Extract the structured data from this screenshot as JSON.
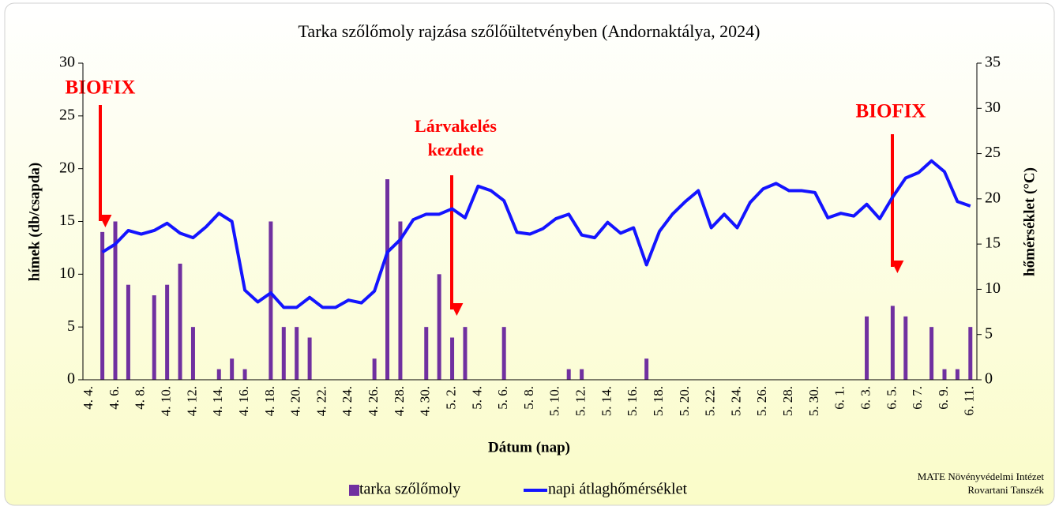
{
  "chart_data": {
    "type": "bar_line",
    "title": "Tarka szőlőmoly rajzása szőlőültetvényben (Andornaktálya, 2024)",
    "x_label": "Dátum (nap)",
    "y_label": "hímek (db/csapda)",
    "y2_label": "hőmérséklet (°C)",
    "categories": [
      "4. 4.",
      null,
      "4. 6.",
      null,
      "4. 8.",
      null,
      "4. 10.",
      null,
      "4. 12.",
      null,
      "4. 14.",
      null,
      "4. 16.",
      null,
      "4. 18.",
      null,
      "4. 20.",
      null,
      "4. 22.",
      null,
      "4. 24.",
      null,
      "4. 26.",
      null,
      "4. 28.",
      null,
      "4. 30.",
      null,
      "5. 2.",
      null,
      "5. 4.",
      null,
      "5. 6.",
      null,
      "5. 8.",
      null,
      "5. 10.",
      null,
      "5. 12.",
      null,
      "5. 14.",
      null,
      "5. 16.",
      null,
      "5. 18.",
      null,
      "5. 20.",
      null,
      "5. 22.",
      null,
      "5. 24.",
      null,
      "5. 26.",
      null,
      "5. 28.",
      null,
      "5. 30.",
      null,
      "6. 1.",
      null,
      "6. 3.",
      null,
      "6. 5.",
      null,
      "6. 7.",
      null,
      "6. 9.",
      null,
      "6. 11."
    ],
    "series": [
      {
        "name": "tarka szőlőmoly",
        "type": "bar",
        "color": "#7030a0",
        "values": [
          0,
          14,
          15,
          9,
          0,
          8,
          9,
          11,
          5,
          0,
          1,
          2,
          1,
          0,
          15,
          5,
          5,
          4,
          0,
          0,
          0,
          0,
          2,
          19,
          15,
          0,
          5,
          10,
          4,
          5,
          0,
          0,
          5,
          0,
          0,
          0,
          0,
          1,
          1,
          0,
          0,
          0,
          0,
          2,
          0,
          0,
          0,
          0,
          0,
          0,
          0,
          0,
          0,
          0,
          0,
          0,
          0,
          0,
          0,
          0,
          6,
          0,
          7,
          6,
          0,
          5,
          1,
          1,
          5
        ]
      },
      {
        "name": "napi átlaghőmérséklet",
        "type": "line",
        "axis": "y2",
        "color": "#1414ff",
        "values": [
          null,
          14.1,
          15,
          16.5,
          16.1,
          16.5,
          17.3,
          16.2,
          15.7,
          16.9,
          18.4,
          17.5,
          9.9,
          8.6,
          9.6,
          8,
          8,
          9.1,
          8,
          8,
          8.8,
          8.5,
          9.8,
          14.1,
          15.5,
          17.7,
          18.3,
          18.3,
          18.9,
          17.9,
          21.4,
          20.9,
          19.8,
          16.3,
          16.1,
          16.7,
          17.8,
          18.3,
          16,
          15.7,
          17.4,
          16.2,
          16.8,
          12.7,
          16.4,
          18.3,
          19.7,
          20.9,
          16.8,
          18.3,
          16.8,
          19.6,
          21.1,
          21.7,
          20.9,
          20.9,
          20.7,
          17.9,
          18.4,
          18.1,
          19.4,
          17.8,
          20.2,
          22.3,
          22.9,
          24.2,
          23,
          19.7,
          19.2
        ]
      }
    ],
    "ylim": [
      0,
      30
    ],
    "yticks": [
      0,
      5,
      10,
      15,
      20,
      25,
      30
    ],
    "y2lim": [
      0,
      35
    ],
    "y2ticks": [
      0,
      5,
      10,
      15,
      20,
      25,
      30,
      35
    ],
    "annotations": [
      "BIOFIX",
      "Lárvakelés",
      "kezdete",
      "BIOFIX"
    ],
    "credit": [
      "MATE Növényvédelmi Intézet",
      "Rovartani Tanszék"
    ],
    "legend": "bottom"
  }
}
